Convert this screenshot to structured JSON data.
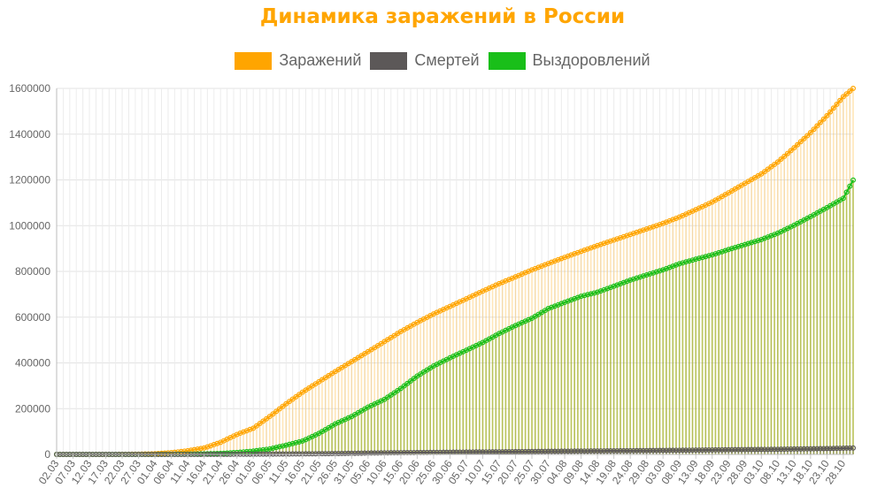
{
  "chart_data": {
    "type": "area",
    "title": "Динамика заражений в России",
    "xlabel": "",
    "ylabel": "",
    "ylim": [
      0,
      1600000
    ],
    "y_ticks": [
      0,
      200000,
      400000,
      600000,
      800000,
      1000000,
      1200000,
      1400000,
      1600000
    ],
    "grid": true,
    "legend_position": "top",
    "x_ticks": [
      "02.03",
      "07.03",
      "12.03",
      "17.03",
      "22.03",
      "27.03",
      "01.04",
      "06.04",
      "11.04",
      "16.04",
      "21.04",
      "26.04",
      "01.05",
      "06.05",
      "11.05",
      "16.05",
      "21.05",
      "26.05",
      "31.05",
      "05.06",
      "10.06",
      "15.06",
      "20.06",
      "25.06",
      "30.06",
      "05.07",
      "10.07",
      "15.07",
      "20.07",
      "25.07",
      "30.07",
      "04.08",
      "09.08",
      "14.08",
      "19.08",
      "24.08",
      "29.08",
      "03.09",
      "08.09",
      "13.09",
      "18.09",
      "23.09",
      "28.09",
      "03.10",
      "08.10",
      "13.10",
      "18.10",
      "23.10",
      "28.10"
    ],
    "x_range": [
      "02.03",
      "31.10"
    ],
    "series": [
      {
        "name": "Заражений",
        "color": "#ffa500",
        "values": [
          3,
          10,
          28,
          93,
          306,
          1036,
          2777,
          7497,
          15770,
          27938,
          52763,
          87147,
          114431,
          165929,
          221344,
          272043,
          317554,
          362342,
          405843,
          449256,
          493023,
          537210,
          576952,
          613994,
          646929,
          680283,
          713936,
          746369,
          776212,
          806720,
          834499,
          861423,
          887536,
          912823,
          937321,
          961493,
          985346,
          1009995,
          1037526,
          1069873,
          1103399,
          1143571,
          1185231,
          1225889,
          1278245,
          1340409,
          1406667,
          1480646,
          1563976,
          1600000
        ]
      },
      {
        "name": "Смертей",
        "color": "#5c5858",
        "values": [
          0,
          0,
          0,
          0,
          1,
          3,
          24,
          58,
          130,
          232,
          456,
          794,
          1169,
          1537,
          2009,
          2537,
          3249,
          3807,
          4855,
          5859,
          6829,
          7468,
          8002,
          8605,
          9306,
          10027,
          10650,
          11205,
          11896,
          12580,
          13290,
          13914,
          14497,
          15001,
          15507,
          16019,
          16524,
          17420,
          18057,
          18722,
          19480,
          20225,
          20993,
          21754,
          22248,
          23491,
          24306,
          25500,
          27034,
          27990
        ]
      },
      {
        "name": "Выздоровлений",
        "color": "#19bf19",
        "values": [
          0,
          0,
          0,
          5,
          16,
          61,
          190,
          580,
          1040,
          2466,
          4156,
          8362,
          14393,
          23803,
          40141,
          58226,
          91690,
          133130,
          165893,
          206880,
          240402,
          288450,
          342640,
          386540,
          422350,
          455560,
          489190,
          528390,
          563300,
          595310,
          637480,
          664640,
          691200,
          709060,
          735310,
          761880,
          784560,
          806770,
          833280,
          853520,
          872240,
          895470,
          917300,
          939290,
          967050,
          1001880,
          1039700,
          1078800,
          1120000,
          1199000
        ]
      }
    ]
  }
}
